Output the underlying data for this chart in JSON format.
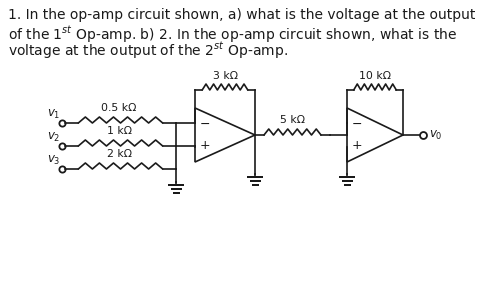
{
  "bg_color": "#ffffff",
  "line_color": "#1a1a1a",
  "font_size_title": 10.0,
  "font_size_labels": 8.5,
  "font_size_res": 7.8,
  "fig_width": 4.86,
  "fig_height": 2.91,
  "dpi": 100,
  "title_lines": [
    "1. In the op-amp circuit shown, a) what is the voltage at the output",
    "of the 1$^{st}$ Op-amp. b) 2. In the op-amp circuit shown, what is the",
    "voltage at the output of the 2$^{st}$ Op-amp."
  ],
  "v1_label": "$v_1$",
  "v2_label": "$v_2$",
  "v3_label": "$v_3$",
  "v0_label": "$v_0$",
  "r1_label": "0.5 kΩ",
  "r2_label": "1 kΩ",
  "r3_label": "2 kΩ",
  "r4_label": "3 kΩ",
  "r5_label": "5 kΩ",
  "r6_label": "10 kΩ"
}
